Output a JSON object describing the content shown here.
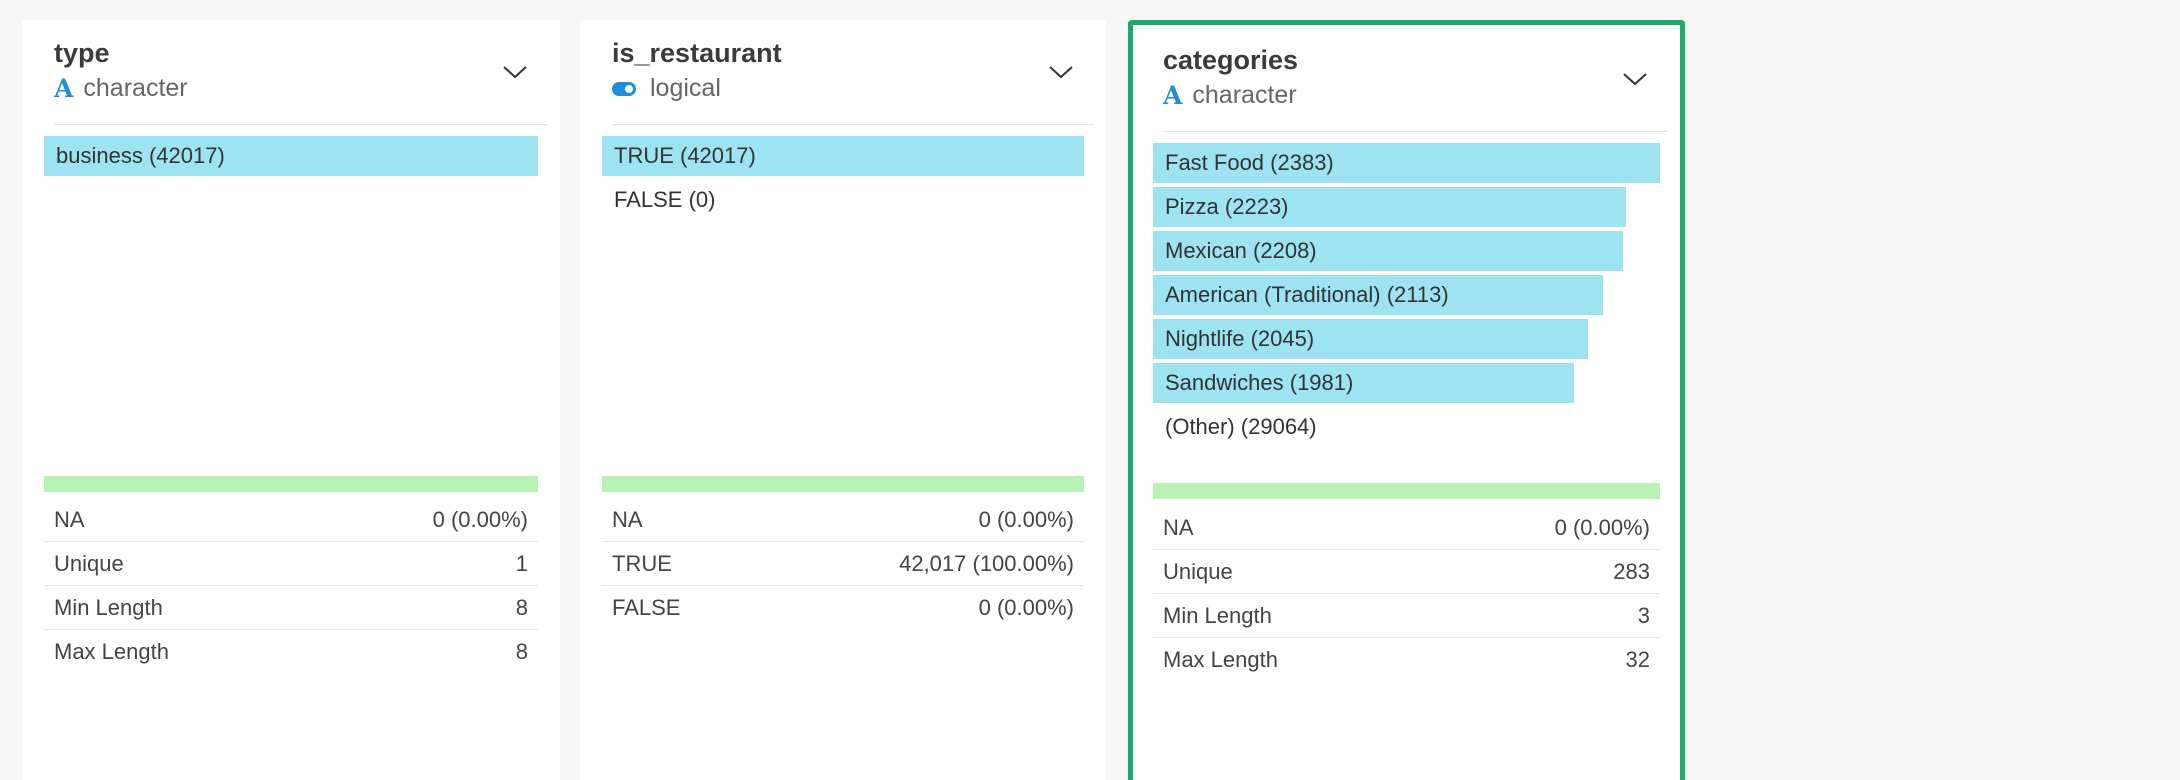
{
  "columns": [
    {
      "name": "type",
      "type_label": "character",
      "type_icon": "character-type-icon",
      "bars": [
        {
          "label": "business (42017)",
          "fraction": 1.0
        }
      ],
      "stats": [
        {
          "key": "NA",
          "value": "0 (0.00%)"
        },
        {
          "key": "Unique",
          "value": "1"
        },
        {
          "key": "Min Length",
          "value": "8"
        },
        {
          "key": "Max Length",
          "value": "8"
        }
      ]
    },
    {
      "name": "is_restaurant",
      "type_label": "logical",
      "type_icon": "logical-type-icon",
      "bars": [
        {
          "label": "TRUE (42017)",
          "fraction": 1.0
        },
        {
          "label": "FALSE (0)",
          "fraction": 0.0
        }
      ],
      "stats": [
        {
          "key": "NA",
          "value": "0 (0.00%)"
        },
        {
          "key": "TRUE",
          "value": "42,017 (100.00%)"
        },
        {
          "key": "FALSE",
          "value": "0 (0.00%)"
        }
      ]
    },
    {
      "name": "categories",
      "type_label": "character",
      "type_icon": "character-type-icon",
      "selected": true,
      "bars": [
        {
          "label": "Fast Food (2383)",
          "fraction": 1.0
        },
        {
          "label": "Pizza (2223)",
          "fraction": 0.933
        },
        {
          "label": "Mexican (2208)",
          "fraction": 0.927
        },
        {
          "label": "American (Traditional) (2113)",
          "fraction": 0.887
        },
        {
          "label": "Nightlife (2045)",
          "fraction": 0.858
        },
        {
          "label": "Sandwiches (1981)",
          "fraction": 0.831
        },
        {
          "label": "(Other) (29064)",
          "fraction": 0.0
        }
      ],
      "stats": [
        {
          "key": "NA",
          "value": "0 (0.00%)"
        },
        {
          "key": "Unique",
          "value": "283"
        },
        {
          "key": "Min Length",
          "value": "3"
        },
        {
          "key": "Max Length",
          "value": "32"
        }
      ]
    }
  ],
  "colors": {
    "bar": "#9de3f2",
    "na_bar": "#b8f2b5",
    "selected_border": "#1fa870",
    "type_icon": "#1e8fd6"
  }
}
